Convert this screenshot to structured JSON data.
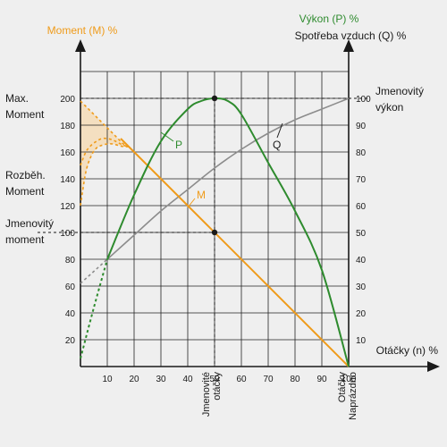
{
  "chart_data": {
    "type": "line",
    "left_axis": {
      "title": "Moment (M) %",
      "range": [
        0,
        200
      ],
      "ticks": [
        "20",
        "40",
        "60",
        "80",
        "100",
        "120",
        "140",
        "160",
        "180",
        "200"
      ]
    },
    "right_axis": {
      "title_1": "Výkon  (P) %",
      "title_2": "Spotřeba vzduch (Q) %",
      "range": [
        0,
        100
      ],
      "ticks": [
        "10",
        "20",
        "30",
        "40",
        "50",
        "60",
        "70",
        "80",
        "90",
        "100"
      ]
    },
    "x_axis": {
      "title": "Otáčky (n) %",
      "range": [
        0,
        100
      ],
      "ticks": [
        "10",
        "20",
        "30",
        "40",
        "50",
        "60",
        "70",
        "80",
        "90",
        "100"
      ]
    },
    "left_annotations": {
      "max_moment_1": "Max.",
      "max_moment_2": "Moment",
      "start_moment_1": "Rozběh.",
      "start_moment_2": "Moment",
      "rated_moment_1": "Jmenovitý",
      "rated_moment_2": "moment"
    },
    "right_annotations": {
      "rated_power_1": "Jmenovitý",
      "rated_power_2": "výkon"
    },
    "bottom_annotations": {
      "rated_speed_1": "Jmenovité",
      "rated_speed_2": "otáčky",
      "idle_1": "Otáčky",
      "idle_2": "Naprázdno"
    },
    "series": [
      {
        "name": "M",
        "axis": "left",
        "color": "#ef9b1a",
        "x": [
          0,
          100
        ],
        "y": [
          200,
          0
        ]
      },
      {
        "name": "P",
        "axis": "right",
        "color": "#2e8b2e",
        "x": [
          0,
          5,
          10,
          20,
          30,
          40,
          45,
          50,
          55,
          60,
          70,
          80,
          90,
          100
        ],
        "y": [
          3,
          22,
          40,
          64,
          84,
          96,
          99,
          100,
          99,
          94,
          76,
          58,
          36,
          0
        ]
      },
      {
        "name": "Q",
        "axis": "right",
        "color": "#8c8c8c",
        "x": [
          0,
          10,
          20,
          30,
          40,
          50,
          60,
          70,
          80,
          90,
          100
        ],
        "y": [
          31,
          40,
          49,
          58,
          66,
          74,
          81,
          87,
          92,
          96,
          100
        ]
      }
    ],
    "startup_curves": {
      "color": "#ef9b1a",
      "x": [
        0,
        2,
        4,
        6,
        8,
        10,
        12,
        14,
        16,
        18
      ],
      "upper": [
        198,
        194,
        190,
        186,
        182,
        178,
        174,
        170,
        166,
        164
      ],
      "middle": [
        150,
        160,
        165,
        168,
        170,
        170,
        169,
        167,
        165,
        164
      ],
      "lower": [
        120,
        145,
        157,
        163,
        165,
        166,
        166,
        165,
        164,
        164
      ]
    },
    "markers": [
      {
        "x": 50,
        "y_left": 200
      },
      {
        "x": 50,
        "y_left": 100
      }
    ],
    "grid": true,
    "colors": {
      "moment": "#ef9b1a",
      "power": "#2e8b2e",
      "air": "#8c8c8c",
      "text": "#1a1a1a",
      "grid": "#222222"
    }
  }
}
